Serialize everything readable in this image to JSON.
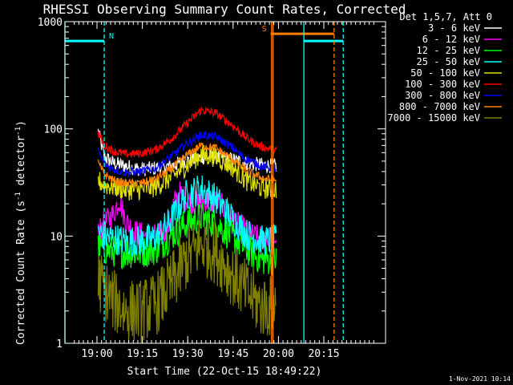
{
  "chart_data": {
    "type": "line",
    "title": "RHESSI Observing Summary Count Rates, Corrected",
    "xlabel": "Start Time (22-Oct-15 18:49:22)",
    "ylabel_main": "Corrected Count Rate (s",
    "ylabel_sup1": "-1",
    "ylabel_mid": " detector",
    "ylabel_sup2": "-1",
    "ylabel_end": ")",
    "footer": "1-Nov-2021 10:14",
    "y_scale": "log",
    "ylim": [
      1,
      1000
    ],
    "x_unit": "minutes since 18:49:22",
    "xlim": [
      0,
      106
    ],
    "x_ticks": [
      {
        "value": 10.6,
        "label": "19:00"
      },
      {
        "value": 25.6,
        "label": "19:15"
      },
      {
        "value": 40.6,
        "label": "19:30"
      },
      {
        "value": 55.6,
        "label": "19:45"
      },
      {
        "value": 70.6,
        "label": "20:00"
      },
      {
        "value": 85.6,
        "label": "20:15"
      }
    ],
    "y_ticks": [
      {
        "value": 1,
        "label": "1"
      },
      {
        "value": 10,
        "label": "10"
      },
      {
        "value": 100,
        "label": "100"
      },
      {
        "value": 1000,
        "label": "1000"
      }
    ],
    "legend": {
      "header": "Det 1,5,7, Att 0",
      "position": "right"
    },
    "series": [
      {
        "name": "3 - 6 keV",
        "color": "#ffffff",
        "noise": 0.07,
        "points": [
          [
            11,
            95
          ],
          [
            13,
            55
          ],
          [
            16,
            48
          ],
          [
            20,
            45
          ],
          [
            25,
            42
          ],
          [
            30,
            43
          ],
          [
            35,
            45
          ],
          [
            40,
            50
          ],
          [
            45,
            54
          ],
          [
            50,
            55
          ],
          [
            55,
            52
          ],
          [
            60,
            48
          ],
          [
            65,
            46
          ],
          [
            70,
            45
          ]
        ]
      },
      {
        "name": "6 - 12 keV",
        "color": "#ff00ff",
        "noise": 0.12,
        "points": [
          [
            11,
            11
          ],
          [
            13,
            13
          ],
          [
            16,
            16
          ],
          [
            18,
            22
          ],
          [
            20,
            14
          ],
          [
            23,
            11
          ],
          [
            27,
            10
          ],
          [
            31,
            10
          ],
          [
            34,
            12
          ],
          [
            36,
            20
          ],
          [
            38,
            25
          ],
          [
            40,
            22
          ],
          [
            44,
            20
          ],
          [
            47,
            21
          ],
          [
            50,
            21
          ],
          [
            53,
            18
          ],
          [
            57,
            13
          ],
          [
            62,
            10
          ],
          [
            66,
            9.5
          ],
          [
            70,
            9.5
          ]
        ]
      },
      {
        "name": "12 - 25 keV",
        "color": "#00ff00",
        "noise": 0.15,
        "points": [
          [
            11,
            8
          ],
          [
            13,
            7.5
          ],
          [
            16,
            7.2
          ],
          [
            20,
            7
          ],
          [
            25,
            7
          ],
          [
            30,
            7.5
          ],
          [
            35,
            10
          ],
          [
            40,
            13
          ],
          [
            45,
            15
          ],
          [
            50,
            13
          ],
          [
            55,
            10
          ],
          [
            60,
            7.5
          ],
          [
            65,
            6
          ],
          [
            70,
            6
          ]
        ]
      },
      {
        "name": "25 - 50 keV",
        "color": "#00ffff",
        "noise": 0.15,
        "points": [
          [
            11,
            11
          ],
          [
            13,
            10
          ],
          [
            16,
            9.5
          ],
          [
            20,
            9
          ],
          [
            25,
            9
          ],
          [
            30,
            9.5
          ],
          [
            35,
            14
          ],
          [
            40,
            24
          ],
          [
            45,
            28
          ],
          [
            50,
            22
          ],
          [
            55,
            15
          ],
          [
            60,
            10.5
          ],
          [
            65,
            9
          ],
          [
            70,
            9
          ]
        ]
      },
      {
        "name": "50 - 100 keV",
        "color": "#dddd00",
        "noise": 0.1,
        "points": [
          [
            11,
            33
          ],
          [
            13,
            30
          ],
          [
            16,
            29
          ],
          [
            20,
            27
          ],
          [
            25,
            27
          ],
          [
            30,
            29
          ],
          [
            35,
            35
          ],
          [
            40,
            45
          ],
          [
            45,
            58
          ],
          [
            50,
            55
          ],
          [
            55,
            45
          ],
          [
            60,
            33
          ],
          [
            65,
            28
          ],
          [
            70,
            27
          ]
        ]
      },
      {
        "name": "100 - 300 keV",
        "color": "#ff0000",
        "noise": 0.04,
        "points": [
          [
            11,
            92
          ],
          [
            13,
            70
          ],
          [
            16,
            62
          ],
          [
            20,
            58
          ],
          [
            25,
            59
          ],
          [
            30,
            64
          ],
          [
            35,
            80
          ],
          [
            40,
            110
          ],
          [
            45,
            150
          ],
          [
            50,
            140
          ],
          [
            55,
            110
          ],
          [
            60,
            82
          ],
          [
            65,
            68
          ],
          [
            70,
            63
          ]
        ]
      },
      {
        "name": "300 - 800 keV",
        "color": "#0000ff",
        "noise": 0.04,
        "points": [
          [
            11,
            62
          ],
          [
            13,
            47
          ],
          [
            16,
            42
          ],
          [
            20,
            39
          ],
          [
            25,
            40
          ],
          [
            30,
            43
          ],
          [
            35,
            55
          ],
          [
            40,
            72
          ],
          [
            45,
            88
          ],
          [
            50,
            84
          ],
          [
            55,
            68
          ],
          [
            60,
            52
          ],
          [
            65,
            45
          ],
          [
            70,
            42
          ]
        ]
      },
      {
        "name": "800 - 7000 keV",
        "color": "#ff8000",
        "noise": 0.04,
        "points": [
          [
            11,
            48
          ],
          [
            13,
            38
          ],
          [
            16,
            33
          ],
          [
            20,
            31
          ],
          [
            25,
            31
          ],
          [
            30,
            34
          ],
          [
            35,
            42
          ],
          [
            40,
            56
          ],
          [
            45,
            70
          ],
          [
            50,
            66
          ],
          [
            55,
            53
          ],
          [
            60,
            41
          ],
          [
            65,
            35
          ],
          [
            70,
            33
          ]
        ]
      },
      {
        "name": "7000 - 15000 keV",
        "color": "#808000",
        "noise": 0.3,
        "points": [
          [
            11,
            4
          ],
          [
            13,
            3.2
          ],
          [
            16,
            2.5
          ],
          [
            20,
            2
          ],
          [
            25,
            2
          ],
          [
            30,
            2.3
          ],
          [
            35,
            3.5
          ],
          [
            40,
            6
          ],
          [
            45,
            8.5
          ],
          [
            50,
            7
          ],
          [
            55,
            4.5
          ],
          [
            60,
            3
          ],
          [
            65,
            2.2
          ],
          [
            70,
            2.2
          ]
        ]
      }
    ],
    "annotations": [
      {
        "kind": "night-bar",
        "label": "N",
        "color": "#00ffff",
        "x_start": 0,
        "x_end": 13,
        "y": 660
      },
      {
        "kind": "night-bar",
        "color": "#00ffff",
        "x_start": 79,
        "x_end": 92,
        "y": 660
      },
      {
        "kind": "saa-bar",
        "label": "S",
        "color": "#ff8000",
        "x_start": 68,
        "x_end": 89,
        "y": 770
      },
      {
        "kind": "vline",
        "style": "solid",
        "color": "#00ffff",
        "x": 0
      },
      {
        "kind": "vline",
        "style": "dashed",
        "color": "#00ffff",
        "x": 13
      },
      {
        "kind": "vline",
        "style": "solid",
        "color": "#ff8000",
        "x": 68.3
      },
      {
        "kind": "vline",
        "style": "solid",
        "color": "#ff8000",
        "x": 68.8
      },
      {
        "kind": "vline",
        "style": "solid",
        "color": "#00ffff",
        "x": 79
      },
      {
        "kind": "vline",
        "style": "dashed",
        "color": "#ff8000",
        "x": 89
      },
      {
        "kind": "vline",
        "style": "dashed",
        "color": "#00ffff",
        "x": 92
      }
    ]
  }
}
